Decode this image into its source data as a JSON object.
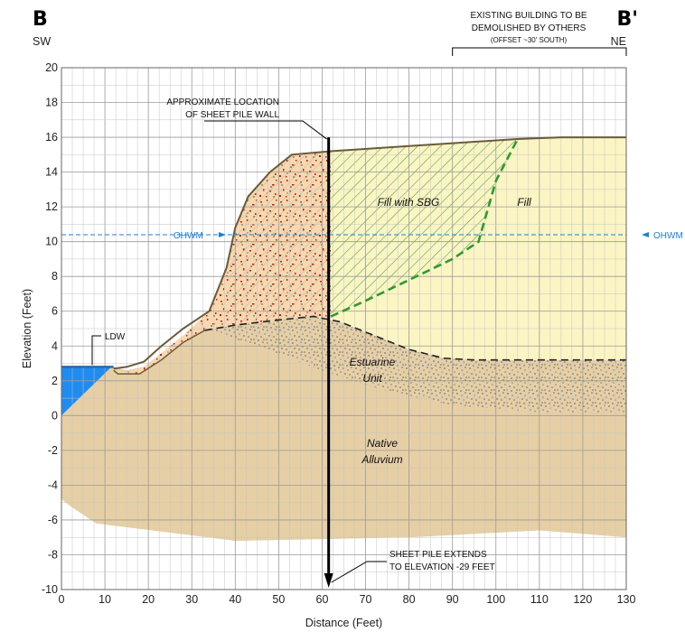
{
  "section": {
    "left_letter": "B",
    "right_letter": "B'",
    "left_dir": "SW",
    "right_dir": "NE"
  },
  "building_note": {
    "line1": "EXISTING BUILDING TO BE",
    "line2": "DEMOLISHED BY OTHERS",
    "line3": "(OFFSET ~30' SOUTH)"
  },
  "wall_note": {
    "line1": "APPROXIMATE LOCATION",
    "line2": "OF SHEET PILE WALL"
  },
  "pile_note": {
    "line1": "SHEET PILE EXTENDS",
    "line2": "TO ELEVATION -29 FEET"
  },
  "ldw_label": "LDW",
  "ohwm_label": "OHWM",
  "units": {
    "fill_sbg": "Fill with SBG",
    "fill": "Fill",
    "estuarine_1": "Estuarine",
    "estuarine_2": "Unit",
    "native_1": "Native",
    "native_2": "Alluvium"
  },
  "chart_data": {
    "type": "cross-section",
    "xlabel": "Distance (Feet)",
    "ylabel": "Elevation (Feet)",
    "xlim": [
      0,
      130
    ],
    "ylim": [
      -10,
      20
    ],
    "x_ticks": [
      "0",
      "10",
      "20",
      "30",
      "40",
      "50",
      "60",
      "70",
      "80",
      "90",
      "100",
      "110",
      "120",
      "130"
    ],
    "y_ticks": [
      "-10",
      "-8",
      "-6",
      "-4",
      "-2",
      "0",
      "2",
      "4",
      "6",
      "8",
      "10",
      "12",
      "14",
      "16",
      "18",
      "20"
    ],
    "grid": true,
    "ohwm_elevation": 10.4,
    "ldw_elevation": 2.8,
    "sheet_pile": {
      "x": 61.5,
      "top": 16,
      "tip_label_elevation": -29
    },
    "building_extent": [
      90,
      130
    ],
    "ground_surface": [
      [
        0,
        2.7
      ],
      [
        12,
        2.7
      ],
      [
        15,
        2.8
      ],
      [
        19,
        3.1
      ],
      [
        23,
        4.0
      ],
      [
        28,
        5.0
      ],
      [
        34,
        6.0
      ],
      [
        38,
        8.5
      ],
      [
        40,
        10.8
      ],
      [
        43,
        12.6
      ],
      [
        48,
        14.0
      ],
      [
        53,
        15.0
      ],
      [
        62,
        15.2
      ],
      [
        80,
        15.5
      ],
      [
        105,
        15.9
      ],
      [
        115,
        16.0
      ],
      [
        130,
        16.0
      ]
    ],
    "estuarine_top": [
      [
        33,
        4.9
      ],
      [
        40,
        5.2
      ],
      [
        50,
        5.5
      ],
      [
        58,
        5.7
      ],
      [
        64,
        5.4
      ],
      [
        72,
        4.6
      ],
      [
        80,
        3.8
      ],
      [
        88,
        3.3
      ],
      [
        95,
        3.2
      ],
      [
        130,
        3.2
      ]
    ],
    "fill_sbg_boundary": [
      [
        62,
        5.7
      ],
      [
        70,
        6.6
      ],
      [
        80,
        7.8
      ],
      [
        90,
        9.0
      ],
      [
        96,
        10.0
      ],
      [
        100,
        13.5
      ],
      [
        105,
        15.9
      ]
    ],
    "native_bottom": [
      [
        0,
        -4.8
      ],
      [
        2,
        -5.2
      ],
      [
        8,
        -6.2
      ],
      [
        40,
        -7.2
      ],
      [
        80,
        -7.0
      ],
      [
        110,
        -6.6
      ],
      [
        130,
        -7.0
      ]
    ]
  }
}
